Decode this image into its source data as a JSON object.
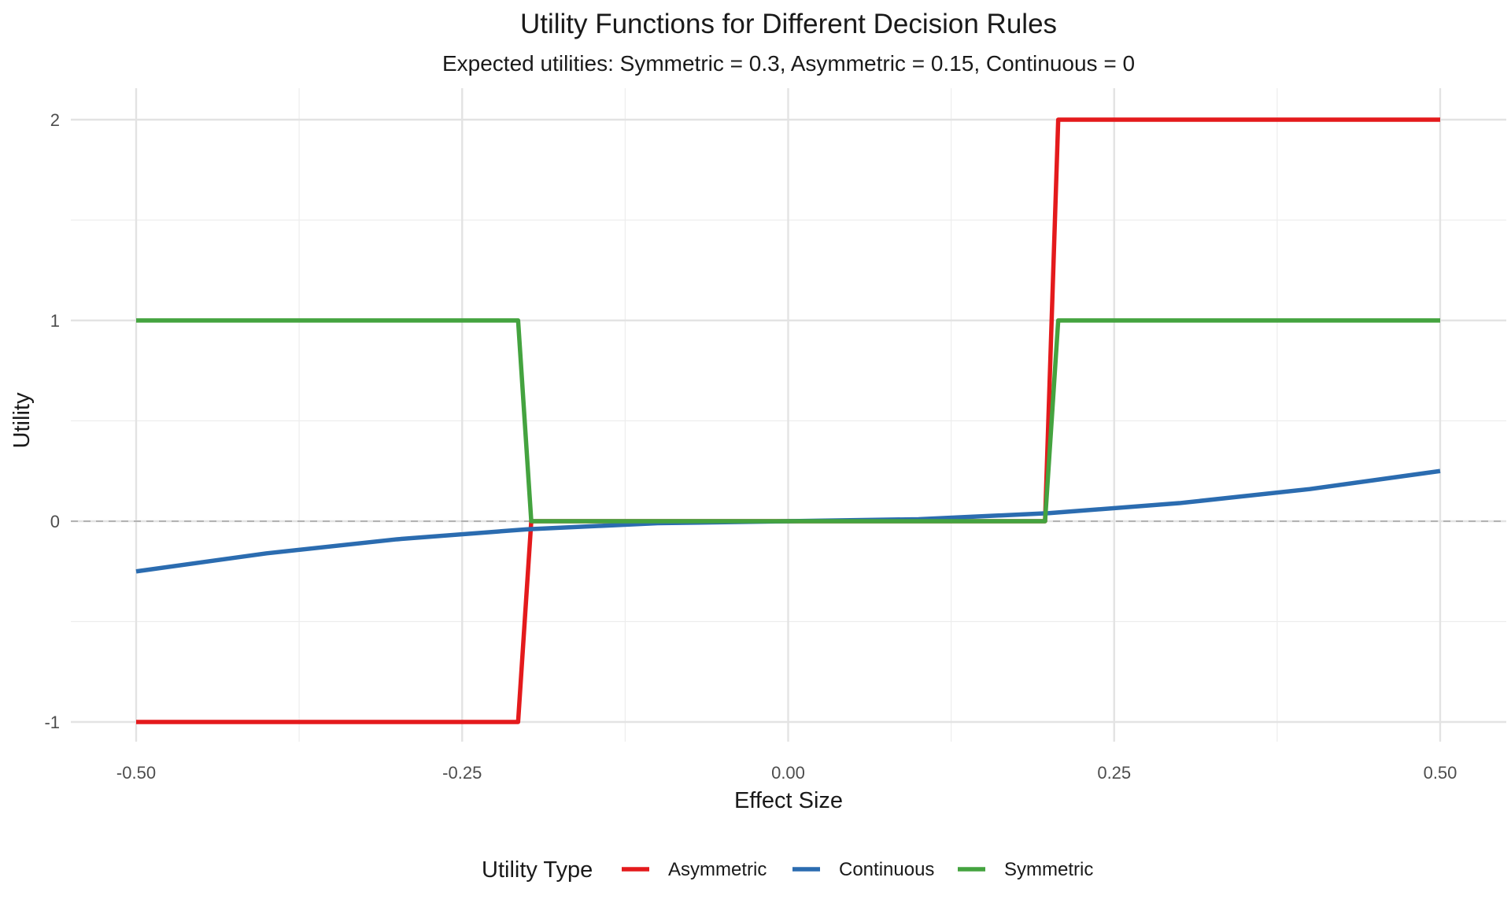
{
  "chart_data": {
    "type": "line",
    "title": "Utility Functions for Different Decision Rules",
    "subtitle": "Expected utilities: Symmetric = 0.3, Asymmetric = 0.15, Continuous = 0",
    "xlabel": "Effect Size",
    "ylabel": "Utility",
    "xlim": [
      -0.5,
      0.5
    ],
    "ylim": [
      -1,
      2
    ],
    "x_ticks": [
      "-0.50",
      "-0.25",
      "0.00",
      "0.25",
      "0.50"
    ],
    "y_ticks": [
      "-1",
      "0",
      "1",
      "2"
    ],
    "grid": true,
    "reference_line": {
      "y": 0,
      "style": "dashed",
      "color": "#b3b3b3"
    },
    "legend": {
      "title": "Utility Type",
      "placement": "bottom"
    },
    "series": [
      {
        "name": "Asymmetric",
        "color": "#e41a1c",
        "x": [
          -0.5,
          -0.2071,
          -0.197,
          0.197,
          0.2071,
          0.5
        ],
        "y": [
          -1,
          -1,
          0,
          0,
          2,
          2
        ]
      },
      {
        "name": "Continuous",
        "color": "#2b6cb0",
        "x": [
          -0.5,
          -0.4,
          -0.3,
          -0.2,
          -0.1,
          0.0,
          0.1,
          0.2,
          0.3,
          0.4,
          0.5
        ],
        "y": [
          -0.25,
          -0.16,
          -0.09,
          -0.04,
          -0.01,
          0.0,
          0.01,
          0.04,
          0.09,
          0.16,
          0.25
        ]
      },
      {
        "name": "Symmetric",
        "color": "#44a33f",
        "x": [
          -0.5,
          -0.2071,
          -0.197,
          0.197,
          0.2071,
          0.5
        ],
        "y": [
          1,
          1,
          0,
          0,
          1,
          1
        ]
      }
    ]
  }
}
